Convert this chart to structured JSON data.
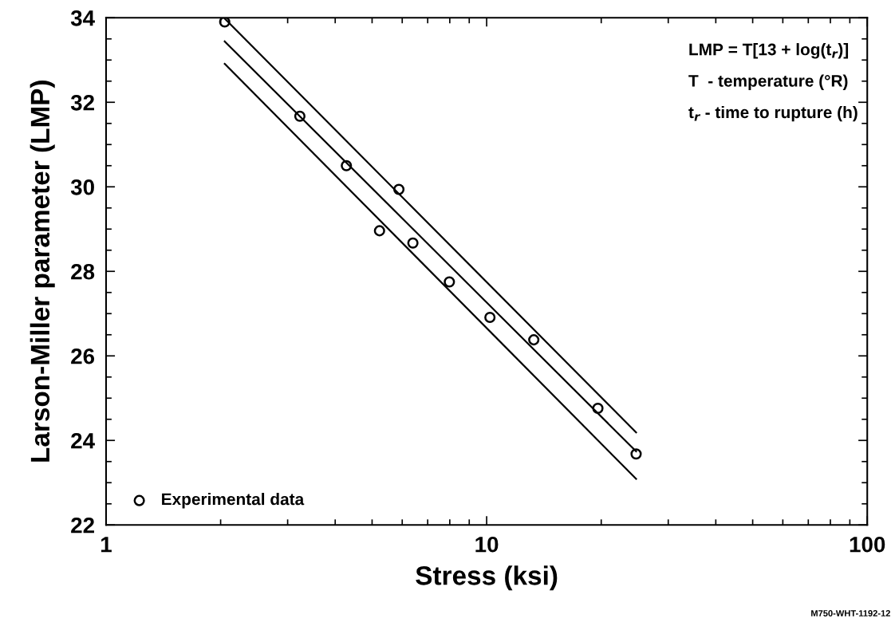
{
  "chart_data": {
    "type": "scatter",
    "xlabel": "Stress (ksi)",
    "ylabel": "Larson-Miller parameter (LMP)",
    "log": "x",
    "grid": false,
    "legend": "bottom left",
    "marker": "circle",
    "xlim": [
      1,
      100
    ],
    "xticks": [
      1,
      {
        "value": 2,
        "label": null
      },
      {
        "value": 3,
        "label": null
      },
      {
        "value": 4,
        "label": null
      },
      {
        "value": 5,
        "label": null
      },
      {
        "value": 6,
        "label": null
      },
      {
        "value": 7,
        "label": null
      },
      {
        "value": 8,
        "label": null
      },
      {
        "value": 9,
        "label": null
      },
      10,
      {
        "value": 20,
        "label": null
      },
      {
        "value": 30,
        "label": null
      },
      {
        "value": 40,
        "label": null
      },
      {
        "value": 50,
        "label": null
      },
      {
        "value": 60,
        "label": null
      },
      {
        "value": 70,
        "label": null
      },
      {
        "value": 80,
        "label": null
      },
      {
        "value": 90,
        "label": null
      },
      100
    ],
    "ylim": [
      22,
      34
    ],
    "yticks": [
      22,
      {
        "value": 22.5,
        "label": null
      },
      {
        "value": 23,
        "label": null
      },
      {
        "value": 23.5,
        "label": null
      },
      24,
      {
        "value": 24.5,
        "label": null
      },
      {
        "value": 25,
        "label": null
      },
      {
        "value": 25.5,
        "label": null
      },
      26,
      {
        "value": 26.5,
        "label": null
      },
      {
        "value": 27,
        "label": null
      },
      {
        "value": 27.5,
        "label": null
      },
      28,
      {
        "value": 28.5,
        "label": null
      },
      {
        "value": 29,
        "label": null
      },
      {
        "value": 29.5,
        "label": null
      },
      30,
      {
        "value": 30.5,
        "label": null
      },
      {
        "value": 31,
        "label": null
      },
      {
        "value": 31.5,
        "label": null
      },
      32,
      {
        "value": 32.5,
        "label": null
      },
      {
        "value": 33,
        "label": null
      },
      {
        "value": 33.5,
        "label": null
      },
      34
    ],
    "series": [
      {
        "name": "Experimental data",
        "color": "#000000",
        "x": [
          2.05,
          3.23,
          4.28,
          5.88,
          5.23,
          6.4,
          7.98,
          10.2,
          13.3,
          19.6,
          24.7
        ],
        "values": [
          33.9,
          31.67,
          30.5,
          29.94,
          28.96,
          28.67,
          27.75,
          26.91,
          26.38,
          24.76,
          23.68
        ]
      },
      {
        "type": "line",
        "color": "#000000",
        "marker": "none",
        "line_style": "solid",
        "x": [
          2.05,
          24.7
        ],
        "values": [
          33.98,
          24.19
        ]
      },
      {
        "type": "line",
        "color": "#000000",
        "marker": "none",
        "line_style": "solid",
        "x": [
          2.05,
          24.7
        ],
        "values": [
          33.44,
          23.74
        ]
      },
      {
        "type": "line",
        "color": "#000000",
        "marker": "none",
        "line_style": "solid",
        "x": [
          2.05,
          24.7
        ],
        "values": [
          32.91,
          23.09
        ]
      }
    ],
    "annotations": [
      "LMP = T[13 + log(t$_{r}$)]",
      "T  - temperature (°R)",
      "t$_{r}$ - time to rupture (h)",
      "M750-WHT-1192-12"
    ]
  }
}
